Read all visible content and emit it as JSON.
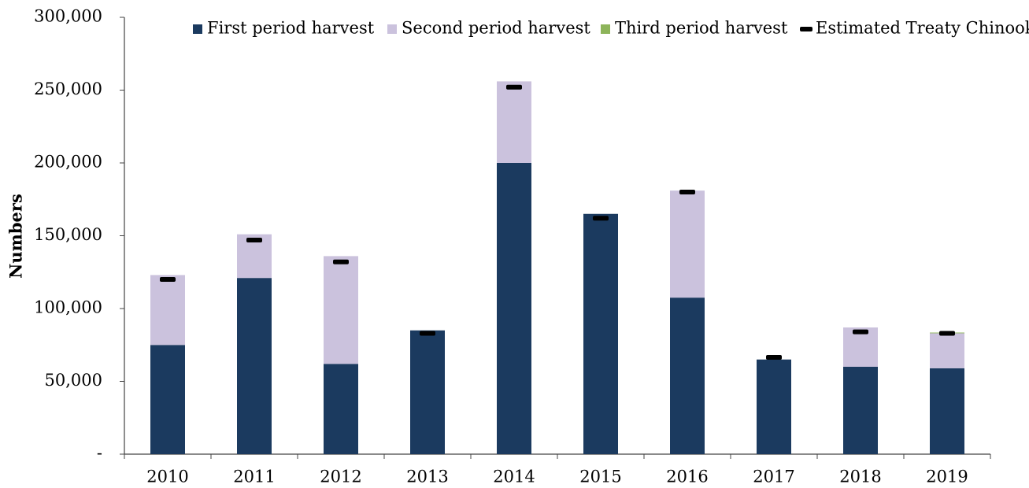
{
  "chart_data": {
    "type": "stacked_bar",
    "ylabel": "Numbers",
    "categories": [
      "2010",
      "2011",
      "2012",
      "2013",
      "2014",
      "2015",
      "2016",
      "2017",
      "2018",
      "2019"
    ],
    "series": [
      {
        "name": "First period harvest",
        "color": "#1b3a5f",
        "values": [
          75000,
          121000,
          62000,
          85000,
          200000,
          165000,
          107500,
          65000,
          60000,
          59000
        ]
      },
      {
        "name": "Second period harvest",
        "color": "#cbc2dd",
        "values": [
          48000,
          30000,
          74000,
          0,
          56000,
          0,
          73500,
          0,
          27000,
          24000
        ]
      },
      {
        "name": "Third period harvest",
        "color": "#8db45a",
        "values": [
          0,
          0,
          0,
          0,
          0,
          0,
          0,
          0,
          0,
          500
        ]
      },
      {
        "name": "Estimated Treaty Chinook",
        "type": "marker",
        "color": "#000000",
        "values": [
          120000,
          147000,
          132000,
          83000,
          252000,
          162000,
          180000,
          66500,
          84000,
          83000
        ]
      }
    ],
    "ylim": [
      0,
      300000
    ],
    "yticks": [
      {
        "value": 0,
        "label": "-"
      },
      {
        "value": 50000,
        "label": "50,000"
      },
      {
        "value": 100000,
        "label": "100,000"
      },
      {
        "value": 150000,
        "label": "150,000"
      },
      {
        "value": 200000,
        "label": "200,000"
      },
      {
        "value": 250000,
        "label": "250,000"
      },
      {
        "value": 300000,
        "label": "300,000"
      }
    ],
    "legend": "top"
  }
}
